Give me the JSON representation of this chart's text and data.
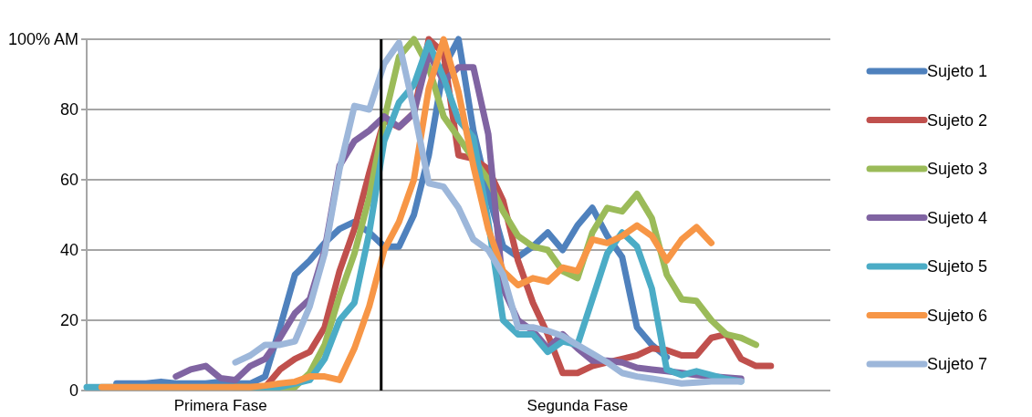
{
  "chart_data": {
    "type": "line",
    "categories": [
      null,
      null,
      null,
      null,
      null,
      null,
      null,
      null,
      null,
      "Primera Fase",
      null,
      null,
      null,
      null,
      null,
      null,
      null,
      null,
      null,
      null,
      null,
      null,
      null,
      null,
      null,
      null,
      null,
      null,
      null,
      null,
      null,
      null,
      null,
      "Segunda Fase",
      null,
      null,
      null,
      null,
      null,
      null,
      null,
      null,
      null,
      null,
      null,
      null,
      null,
      null,
      null,
      null,
      null
    ],
    "ylim": [
      0,
      100
    ],
    "yticks": [
      0,
      20,
      40,
      60,
      80,
      {
        "value": 100,
        "label": "100% AM"
      }
    ],
    "grid": "y",
    "legend": "right",
    "line_style": "solid",
    "series": [
      {
        "name": "Sujeto 1",
        "color": "#4f81bd",
        "values": [
          null,
          null,
          2,
          2,
          2,
          2.5,
          2,
          2,
          2,
          2.5,
          2,
          2,
          4,
          18,
          33,
          37,
          42,
          46,
          48,
          45,
          41,
          41,
          50,
          67,
          92,
          100,
          74,
          56,
          41,
          38,
          41,
          45,
          40,
          47,
          52,
          44,
          38,
          18,
          13,
          9.5,
          null,
          null,
          null,
          null,
          null,
          null,
          null,
          null,
          null,
          null,
          null
        ]
      },
      {
        "name": "Sujeto 2",
        "color": "#c0504d",
        "values": [
          null,
          null,
          null,
          null,
          null,
          null,
          null,
          null,
          null,
          null,
          1,
          1,
          1,
          6,
          9,
          11,
          18,
          34,
          46,
          62,
          77,
          75,
          79,
          100,
          96,
          67,
          66,
          63,
          54,
          37,
          25,
          16,
          5,
          5,
          7,
          8,
          9,
          10,
          12,
          11.5,
          10,
          10,
          15,
          16,
          9,
          7,
          7,
          null,
          null,
          null,
          null
        ]
      },
      {
        "name": "Sujeto 3",
        "color": "#9bbb59",
        "values": [
          null,
          null,
          null,
          null,
          null,
          null,
          null,
          null,
          null,
          null,
          1,
          1,
          1,
          1,
          1,
          5,
          13,
          27,
          39,
          55,
          77,
          95,
          100,
          92,
          78,
          72,
          66,
          60,
          51,
          44,
          41,
          40,
          34,
          32,
          45,
          52,
          51,
          56,
          49,
          33,
          26,
          25.5,
          20,
          16,
          15,
          13,
          null,
          null,
          null,
          null,
          null
        ]
      },
      {
        "name": "Sujeto 4",
        "color": "#8064a2",
        "values": [
          null,
          null,
          null,
          null,
          null,
          null,
          4,
          6,
          7,
          3.5,
          3,
          7,
          9,
          15,
          22,
          26,
          40,
          64,
          71,
          74,
          78,
          75,
          79,
          96,
          88,
          92,
          92,
          73,
          29,
          20,
          17,
          12,
          16,
          12,
          8.5,
          8.5,
          8,
          6.5,
          6,
          5.5,
          5,
          4.4,
          4,
          3.7,
          3.4,
          null,
          null,
          null,
          null,
          null,
          null
        ]
      },
      {
        "name": "Sujeto 5",
        "color": "#4bacc6",
        "values": [
          1,
          1,
          1,
          1,
          1,
          1,
          1,
          1,
          1,
          1,
          1,
          1,
          1,
          1,
          2,
          3,
          9,
          20,
          25,
          45,
          71,
          82,
          87,
          99,
          89,
          77,
          72,
          48,
          20,
          16,
          16,
          11,
          14,
          13,
          26,
          39,
          45,
          41,
          29,
          6,
          4.4,
          5.5,
          4.4,
          3.3,
          2.6,
          null,
          null,
          null,
          null,
          null,
          null
        ]
      },
      {
        "name": "Sujeto 6",
        "color": "#f79646",
        "values": [
          null,
          1,
          1,
          1,
          1,
          1,
          1,
          1,
          1,
          1,
          1,
          1,
          1.4,
          2,
          2.5,
          4,
          4,
          3,
          12,
          24,
          40,
          48,
          60,
          86,
          100,
          85,
          64,
          46,
          34,
          30,
          32,
          31,
          35,
          34,
          43,
          42,
          44,
          47,
          44,
          37,
          43,
          46.5,
          42,
          null,
          null,
          null,
          null,
          null,
          null,
          null,
          null
        ]
      },
      {
        "name": "Sujeto 7",
        "color": "#9db7da",
        "values": [
          null,
          null,
          null,
          null,
          null,
          null,
          null,
          null,
          null,
          null,
          8,
          10,
          13,
          13,
          14,
          24,
          39,
          63,
          81,
          80,
          93,
          99,
          80,
          59,
          58,
          52,
          43,
          40,
          33,
          18,
          18,
          17,
          15.5,
          13,
          10.5,
          8,
          5,
          4,
          3.4,
          2.7,
          2,
          2.3,
          2.6,
          2.6,
          2.6,
          null,
          null,
          null,
          null,
          null,
          null
        ]
      }
    ]
  }
}
